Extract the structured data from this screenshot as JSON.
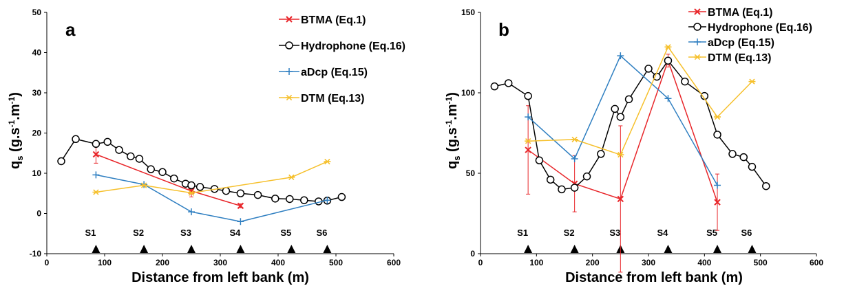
{
  "chart_data": [
    {
      "type": "line",
      "panel_label": "a",
      "ylabel_main": "q",
      "ylabel_sub": "s",
      "ylabel_unit": "(g.s-1.m-1)",
      "xlabel": "Distance from left bank (m)",
      "xlim": [
        0,
        600
      ],
      "ylim": [
        -10,
        50
      ],
      "xticks": [
        0,
        100,
        200,
        300,
        400,
        500,
        600
      ],
      "yticks": [
        -10,
        0,
        10,
        20,
        30,
        40,
        50
      ],
      "legend_position": "top-right",
      "stations": [
        {
          "name": "S1",
          "x": 85
        },
        {
          "name": "S2",
          "x": 168
        },
        {
          "name": "S3",
          "x": 250
        },
        {
          "name": "S4",
          "x": 335
        },
        {
          "name": "S5",
          "x": 423
        },
        {
          "name": "S6",
          "x": 485
        }
      ],
      "series": [
        {
          "name": "BTMA (Eq.1)",
          "color": "#e8262a",
          "marker": "x",
          "x": [
            85,
            250,
            335
          ],
          "y": [
            14.7,
            5.6,
            1.9
          ],
          "err": [
            2.2,
            1.5,
            0.5
          ]
        },
        {
          "name": "Hydrophone (Eq.16)",
          "color": "#000000",
          "marker": "circle",
          "x": [
            25,
            50,
            85,
            105,
            125,
            145,
            160,
            180,
            200,
            220,
            240,
            250,
            265,
            290,
            310,
            335,
            365,
            395,
            420,
            445,
            470,
            485,
            510
          ],
          "y": [
            13,
            18.5,
            17.3,
            17.8,
            15.8,
            14.2,
            13.6,
            11.0,
            10.3,
            8.7,
            7.4,
            7.0,
            6.6,
            6.1,
            5.6,
            5.0,
            4.6,
            3.7,
            3.6,
            3.3,
            3.0,
            3.2,
            4.1
          ]
        },
        {
          "name": "aDcp (Eq.15)",
          "color": "#2f7fc1",
          "marker": "plus",
          "x": [
            85,
            168,
            250,
            335,
            485
          ],
          "y": [
            9.6,
            7.2,
            0.4,
            -2.0,
            3.3
          ]
        },
        {
          "name": "DTM (Eq.13)",
          "color": "#f6c02c",
          "marker": "star",
          "x": [
            85,
            168,
            250,
            423,
            485
          ],
          "y": [
            5.3,
            7.0,
            5.1,
            9.0,
            12.9
          ]
        }
      ]
    },
    {
      "type": "line",
      "panel_label": "b",
      "ylabel_main": "q",
      "ylabel_sub": "s",
      "ylabel_unit": "(g.s-1.m-1)",
      "xlabel": "Distance from left bank (m)",
      "xlim": [
        0,
        600
      ],
      "ylim": [
        0,
        150
      ],
      "xticks": [
        0,
        100,
        200,
        300,
        400,
        500,
        600
      ],
      "yticks": [
        0,
        50,
        100,
        150
      ],
      "legend_position": "top-right",
      "stations": [
        {
          "name": "S1",
          "x": 85
        },
        {
          "name": "S2",
          "x": 168
        },
        {
          "name": "S3",
          "x": 250
        },
        {
          "name": "S4",
          "x": 335
        },
        {
          "name": "S5",
          "x": 423
        },
        {
          "name": "S6",
          "x": 485
        }
      ],
      "series": [
        {
          "name": "BTMA (Eq.1)",
          "color": "#e8262a",
          "marker": "x",
          "x": [
            85,
            168,
            250,
            335,
            423
          ],
          "y": [
            64.5,
            43.5,
            34.0,
            120.0,
            32.0
          ],
          "err": [
            27.5,
            17.5,
            45.5,
            4.0,
            17.5
          ]
        },
        {
          "name": "Hydrophone (Eq.16)",
          "color": "#000000",
          "marker": "circle",
          "x": [
            25,
            50,
            85,
            105,
            125,
            145,
            168,
            190,
            215,
            240,
            250,
            265,
            300,
            315,
            335,
            365,
            400,
            423,
            450,
            470,
            485,
            510
          ],
          "y": [
            104,
            106,
            98,
            58,
            46,
            40,
            41,
            48,
            62,
            90,
            85,
            96,
            115,
            110,
            120,
            107,
            98,
            74,
            62,
            60,
            54,
            42
          ]
        },
        {
          "name": "aDcp (Eq.15)",
          "color": "#2f7fc1",
          "marker": "plus",
          "x": [
            85,
            168,
            250,
            335,
            423
          ],
          "y": [
            85.0,
            59.0,
            123.0,
            96.5,
            42.5
          ]
        },
        {
          "name": "DTM (Eq.13)",
          "color": "#f6c02c",
          "marker": "star",
          "x": [
            85,
            168,
            250,
            335,
            423,
            485
          ],
          "y": [
            70,
            71,
            61.5,
            128.5,
            85,
            107
          ]
        }
      ]
    }
  ]
}
